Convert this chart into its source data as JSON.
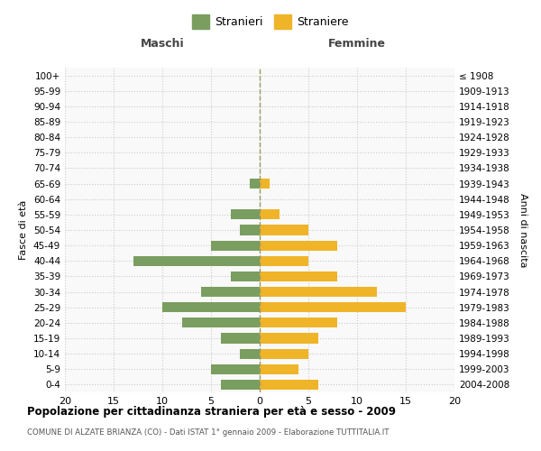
{
  "age_groups": [
    "0-4",
    "5-9",
    "10-14",
    "15-19",
    "20-24",
    "25-29",
    "30-34",
    "35-39",
    "40-44",
    "45-49",
    "50-54",
    "55-59",
    "60-64",
    "65-69",
    "70-74",
    "75-79",
    "80-84",
    "85-89",
    "90-94",
    "95-99",
    "100+"
  ],
  "birth_years": [
    "2004-2008",
    "1999-2003",
    "1994-1998",
    "1989-1993",
    "1984-1988",
    "1979-1983",
    "1974-1978",
    "1969-1973",
    "1964-1968",
    "1959-1963",
    "1954-1958",
    "1949-1953",
    "1944-1948",
    "1939-1943",
    "1934-1938",
    "1929-1933",
    "1924-1928",
    "1919-1923",
    "1914-1918",
    "1909-1913",
    "≤ 1908"
  ],
  "maschi": [
    4,
    5,
    2,
    4,
    8,
    10,
    6,
    3,
    13,
    5,
    2,
    3,
    0,
    1,
    0,
    0,
    0,
    0,
    0,
    0,
    0
  ],
  "femmine": [
    6,
    4,
    5,
    6,
    8,
    15,
    12,
    8,
    5,
    8,
    5,
    2,
    0,
    1,
    0,
    0,
    0,
    0,
    0,
    0,
    0
  ],
  "male_color": "#7a9e5f",
  "female_color": "#f0b429",
  "center_line_color": "#999966",
  "grid_color": "#cccccc",
  "bg_color": "#f9f9f9",
  "title": "Popolazione per cittadinanza straniera per età e sesso - 2009",
  "subtitle": "COMUNE DI ALZATE BRIANZA (CO) - Dati ISTAT 1° gennaio 2009 - Elaborazione TUTTITALIA.IT",
  "xlabel_left": "Maschi",
  "xlabel_right": "Femmine",
  "ylabel_left": "Fasce di età",
  "ylabel_right": "Anni di nascita",
  "legend_male": "Stranieri",
  "legend_female": "Straniere",
  "xlim": 20,
  "bar_height": 0.65
}
